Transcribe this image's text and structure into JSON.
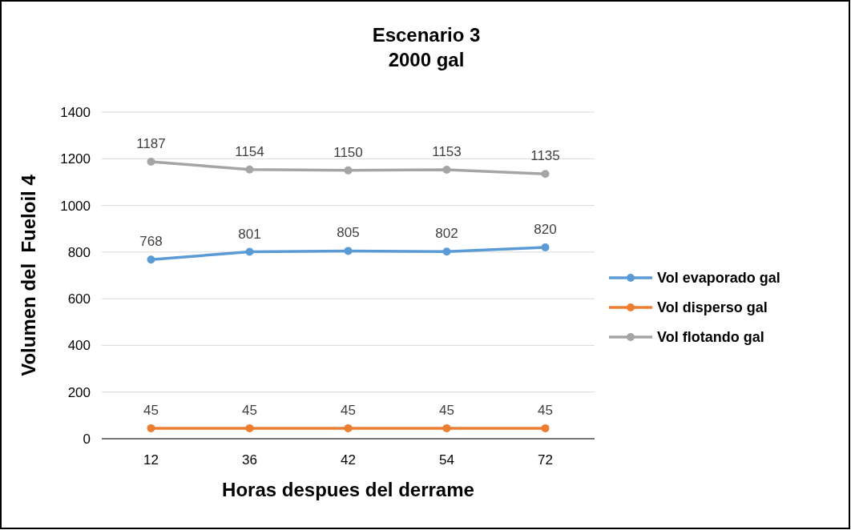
{
  "chart_data": {
    "type": "line",
    "title": "Escenario 3\n2000 gal",
    "xlabel": "Horas despues del derrame",
    "ylabel": "Volumen del  Fueloil 4",
    "categories": [
      "12",
      "36",
      "42",
      "54",
      "72"
    ],
    "series": [
      {
        "name": "Vol evaporado gal",
        "color": "#5b9bd5",
        "values": [
          768,
          801,
          805,
          802,
          820
        ]
      },
      {
        "name": "Vol disperso gal",
        "color": "#ed7d31",
        "values": [
          45,
          45,
          45,
          45,
          45
        ]
      },
      {
        "name": "Vol flotando gal",
        "color": "#a5a5a5",
        "values": [
          1187,
          1154,
          1150,
          1153,
          1135
        ]
      }
    ],
    "ylim": [
      0,
      1400
    ],
    "yticks": [
      0,
      200,
      400,
      600,
      800,
      1000,
      1200,
      1400
    ],
    "grid": "y",
    "legend": "right",
    "marker": "circle",
    "line_style": "solid",
    "data_labels": true
  }
}
